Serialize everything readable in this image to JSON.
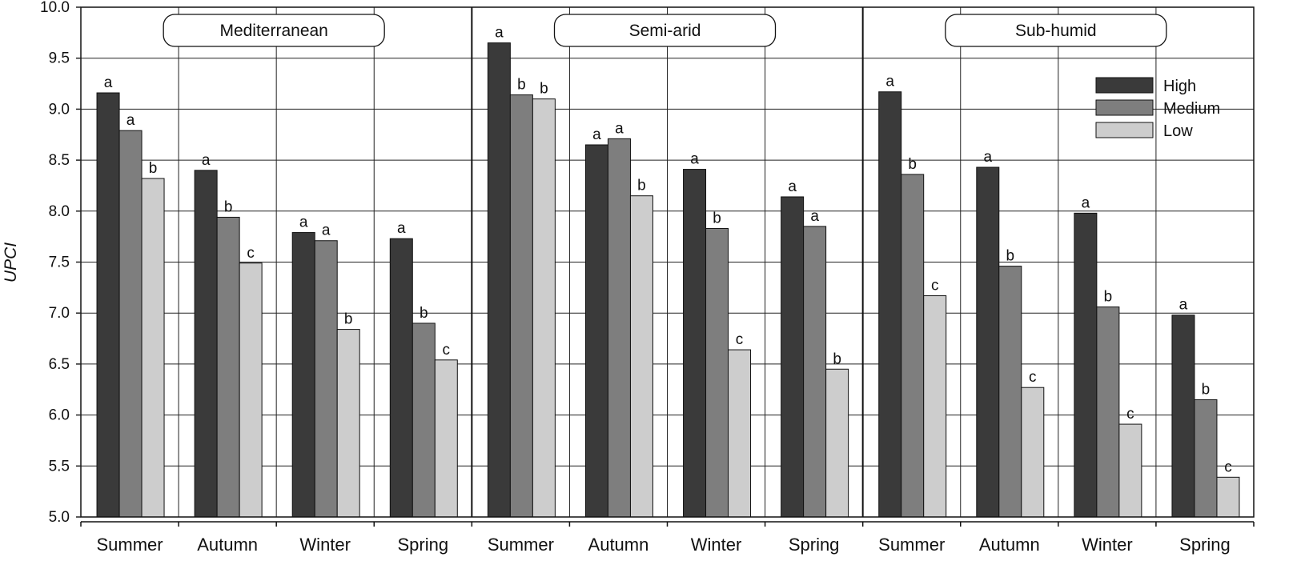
{
  "chart_data": {
    "type": "bar",
    "ylabel": "UPCI",
    "ylim": [
      5.0,
      10.0
    ],
    "yticks": [
      "5.0",
      "5.5",
      "6.0",
      "6.5",
      "7.0",
      "7.5",
      "8.0",
      "8.5",
      "9.0",
      "9.5",
      "10.0"
    ],
    "grid": true,
    "legend_position": "top-right",
    "series": [
      {
        "name": "High",
        "color": "#3a3a3a"
      },
      {
        "name": "Medium",
        "color": "#7e7e7e"
      },
      {
        "name": "Low",
        "color": "#cdcdcd"
      }
    ],
    "panels": [
      {
        "name": "Mediterranean",
        "groups": [
          {
            "category": "Summer",
            "values": [
              9.16,
              8.79,
              8.32
            ],
            "labels": [
              "a",
              "a",
              "b"
            ]
          },
          {
            "category": "Autumn",
            "values": [
              8.4,
              7.94,
              7.49
            ],
            "labels": [
              "a",
              "b",
              "c"
            ]
          },
          {
            "category": "Winter",
            "values": [
              7.79,
              7.71,
              6.84
            ],
            "labels": [
              "a",
              "a",
              "b"
            ]
          },
          {
            "category": "Spring",
            "values": [
              7.73,
              6.9,
              6.54
            ],
            "labels": [
              "a",
              "b",
              "c"
            ]
          }
        ]
      },
      {
        "name": "Semi-arid",
        "groups": [
          {
            "category": "Summer",
            "values": [
              9.65,
              9.14,
              9.1
            ],
            "labels": [
              "a",
              "b",
              "b"
            ]
          },
          {
            "category": "Autumn",
            "values": [
              8.65,
              8.71,
              8.15
            ],
            "labels": [
              "a",
              "a",
              "b"
            ]
          },
          {
            "category": "Winter",
            "values": [
              8.41,
              7.83,
              6.64
            ],
            "labels": [
              "a",
              "b",
              "c"
            ]
          },
          {
            "category": "Spring",
            "values": [
              8.14,
              7.85,
              6.45
            ],
            "labels": [
              "a",
              "a",
              "b"
            ]
          }
        ]
      },
      {
        "name": "Sub-humid",
        "groups": [
          {
            "category": "Summer",
            "values": [
              9.17,
              8.36,
              7.17
            ],
            "labels": [
              "a",
              "b",
              "c"
            ]
          },
          {
            "category": "Autumn",
            "values": [
              8.43,
              7.46,
              6.27
            ],
            "labels": [
              "a",
              "b",
              "c"
            ]
          },
          {
            "category": "Winter",
            "values": [
              7.98,
              7.06,
              5.91
            ],
            "labels": [
              "a",
              "b",
              "c"
            ]
          },
          {
            "category": "Spring",
            "values": [
              6.98,
              6.15,
              5.39
            ],
            "labels": [
              "a",
              "b",
              "c"
            ]
          }
        ]
      }
    ]
  }
}
